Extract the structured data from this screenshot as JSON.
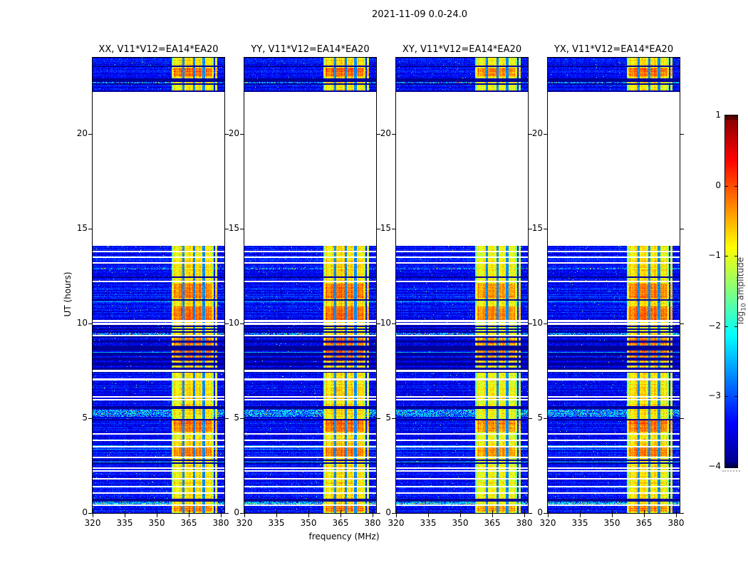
{
  "chart_data": {
    "type": "heatmap",
    "title": "2021-11-09 0.0-24.0",
    "xlabel": "frequency (MHz)",
    "ylabel": "UT (hours)",
    "x_range": [
      320,
      381.5
    ],
    "x_ticks": [
      320,
      335,
      350,
      365,
      380
    ],
    "y_range": [
      0,
      24
    ],
    "y_ticks": [
      0,
      5,
      10,
      15,
      20
    ],
    "colormap": "jet",
    "value_range": [
      -4,
      1
    ],
    "colorbar": {
      "label_prefix": "log",
      "label_sub": "10",
      "label_rest": " amplitude",
      "ticks": [
        "1",
        "0",
        "−1",
        "−2",
        "−3",
        "−4"
      ],
      "tick_values": [
        1,
        0,
        -1,
        -2,
        -3,
        -4
      ]
    },
    "panels": [
      {
        "label": "XX, V11*V12=EA14*EA20",
        "pol": "XX",
        "seed": 11,
        "rfi_offset": 0
      },
      {
        "label": "YY, V11*V12=EA14*EA20",
        "pol": "YY",
        "seed": 22,
        "rfi_offset": 0.04
      },
      {
        "label": "XY, V11*V12=EA14*EA20",
        "pol": "XY",
        "seed": 33,
        "rfi_offset": -0.14
      },
      {
        "label": "YX, V11*V12=EA14*EA20",
        "pol": "YX",
        "seed": 44,
        "rfi_offset": 0
      }
    ],
    "pattern": {
      "data_segments_ut": [
        [
          0,
          14.08
        ],
        [
          22.2,
          24.0
        ]
      ],
      "empty_segment_ut": [
        14.08,
        22.2
      ],
      "background_level": -3.35,
      "rfi_level": -0.95,
      "rfi_band_freq": [
        357.0,
        376.5
      ],
      "rfi_gaps_freq": [
        [
          361.9,
          362.9
        ],
        [
          366.9,
          368.0
        ],
        [
          371.3,
          372.4
        ]
      ],
      "rfi_thin_line_freq": [
        377.3,
        378.1
      ],
      "white_stripes_ut": [
        13.79,
        13.49,
        13.19,
        12.21,
        10.12,
        9.97,
        9.35,
        7.49,
        7.04,
        6.12,
        5.97,
        4.17,
        3.83,
        3.49,
        2.93,
        2.37,
        2.23,
        1.8,
        1.39,
        1.05,
        0.41
      ],
      "black_stripes_ut": [
        [
          12.43,
          0.08
        ],
        [
          11.23,
          0.1
        ],
        [
          9.84,
          0.07
        ],
        [
          9.69,
          0.07
        ],
        [
          9.54,
          0.07
        ],
        [
          5.56,
          0.12
        ],
        [
          4.92,
          0.06
        ],
        [
          2.78,
          0.06
        ],
        [
          2.63,
          0.06
        ],
        [
          0.66,
          0.15
        ],
        [
          23.56,
          0.08
        ],
        [
          22.82,
          0.17
        ],
        [
          22.6,
          0.06
        ],
        [
          22.23,
          0.06
        ]
      ],
      "dense_dark_zone_ut": [
        7.12,
        9.32
      ],
      "orange_rows_ut": [
        [
          23.02,
          23.48
        ],
        [
          11.3,
          12.08
        ],
        [
          10.12,
          10.88
        ],
        [
          8.0,
          9.32
        ],
        [
          4.28,
          4.88
        ],
        [
          3.0,
          3.44
        ],
        [
          0.06,
          0.36
        ]
      ],
      "speckle_rows_ut": [
        [
          12.84,
          12.93
        ],
        [
          5.06,
          5.46
        ],
        [
          0.44,
          0.62
        ],
        [
          22.63,
          22.73
        ],
        [
          9.33,
          9.5
        ]
      ]
    }
  }
}
